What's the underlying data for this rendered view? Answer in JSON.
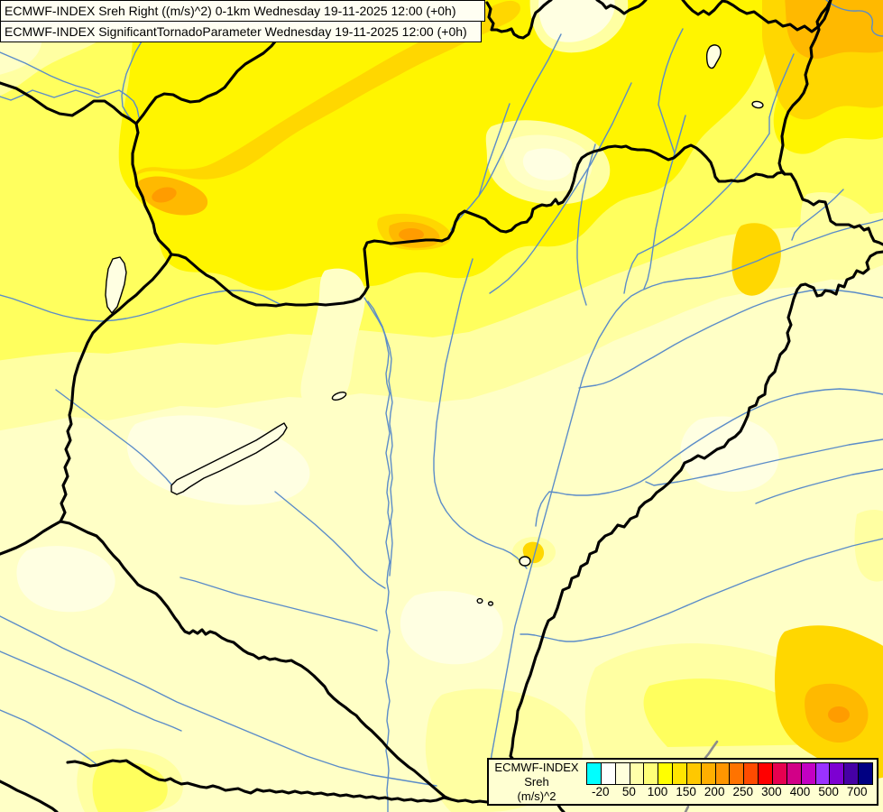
{
  "titles": {
    "line1": "ECMWF-INDEX Sreh Right ((m/s)^2) 0-1km Wednesday 19-11-2025 12:00 (+0h)",
    "line2": "ECMWF-INDEX SignificantTornadoParameter Wednesday 19-11-2025 12:00 (+0h)"
  },
  "legend": {
    "title": "ECMWF-INDEX",
    "subtitle": "Sreh",
    "units": "(m/s)^2",
    "colors": [
      "#00FFFF",
      "#FFFFFF",
      "#FFFFDC",
      "#FFFFAA",
      "#FFFF78",
      "#FFFF00",
      "#FFE400",
      "#FFC800",
      "#FFAF00",
      "#FF9600",
      "#FF7300",
      "#FF4B00",
      "#FF0000",
      "#E60050",
      "#D20087",
      "#C300C3",
      "#9B32FF",
      "#7D00D2",
      "#4600A5",
      "#000082"
    ],
    "ticks": [
      {
        "label": "-20",
        "boundary": 1
      },
      {
        "label": "50",
        "boundary": 3
      },
      {
        "label": "100",
        "boundary": 5
      },
      {
        "label": "150",
        "boundary": 7
      },
      {
        "label": "200",
        "boundary": 9
      },
      {
        "label": "250",
        "boundary": 11
      },
      {
        "label": "300",
        "boundary": 13
      },
      {
        "label": "400",
        "boundary": 15
      },
      {
        "label": "500",
        "boundary": 17
      },
      {
        "label": "700",
        "boundary": 19
      }
    ]
  },
  "map": {
    "colors": {
      "base": "#FFFFC6",
      "light": "#FFFFA2",
      "yellow": "#FFFF5E",
      "vivid": "#FFF500",
      "gold": "#FFD700",
      "amber": "#FFB900",
      "orange": "#FF9C00",
      "pale": "#FFFFE2",
      "river": "#5B8CC8",
      "border": "#000000",
      "gray": "#8C8C8C",
      "titlebg": "#FFFEF2",
      "legendbg": "#FFFFD2"
    }
  }
}
